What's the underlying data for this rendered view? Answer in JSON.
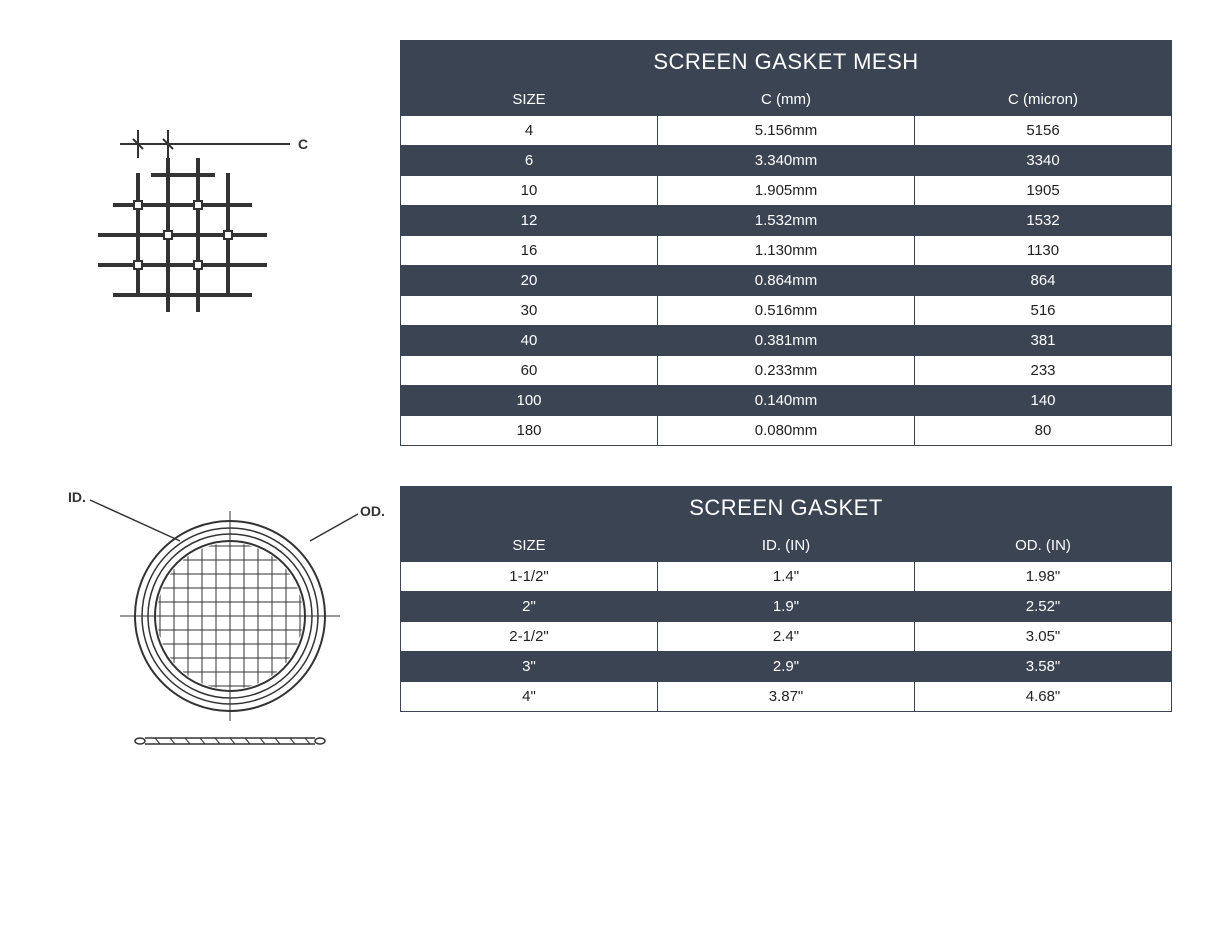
{
  "colors": {
    "table_dark": "#3b4453",
    "table_border": "#3b4453",
    "text_light": "#ffffff",
    "text_dark": "#222222",
    "page_bg": "#ffffff",
    "diagram_stroke": "#333333"
  },
  "mesh_diagram": {
    "label_c": "C"
  },
  "gasket_diagram": {
    "label_id": "ID.",
    "label_od": "OD."
  },
  "mesh_table": {
    "title": "SCREEN GASKET MESH",
    "columns": [
      "SIZE",
      "C (mm)",
      "C (micron)"
    ],
    "rows": [
      [
        "4",
        "5.156mm",
        "5156"
      ],
      [
        "6",
        "3.340mm",
        "3340"
      ],
      [
        "10",
        "1.905mm",
        "1905"
      ],
      [
        "12",
        "1.532mm",
        "1532"
      ],
      [
        "16",
        "1.130mm",
        "1130"
      ],
      [
        "20",
        "0.864mm",
        "864"
      ],
      [
        "30",
        "0.516mm",
        "516"
      ],
      [
        "40",
        "0.381mm",
        "381"
      ],
      [
        "60",
        "0.233mm",
        "233"
      ],
      [
        "100",
        "0.140mm",
        "140"
      ],
      [
        "180",
        "0.080mm",
        "80"
      ]
    ]
  },
  "gasket_table": {
    "title": "SCREEN GASKET",
    "columns": [
      "SIZE",
      "ID. (IN)",
      "OD. (IN)"
    ],
    "rows": [
      [
        "1-1/2\"",
        "1.4\"",
        "1.98\""
      ],
      [
        "2\"",
        "1.9\"",
        "2.52\""
      ],
      [
        "2-1/2\"",
        "2.4\"",
        "3.05\""
      ],
      [
        "3\"",
        "2.9\"",
        "3.58\""
      ],
      [
        "4\"",
        "3.87\"",
        "4.68\""
      ]
    ]
  }
}
